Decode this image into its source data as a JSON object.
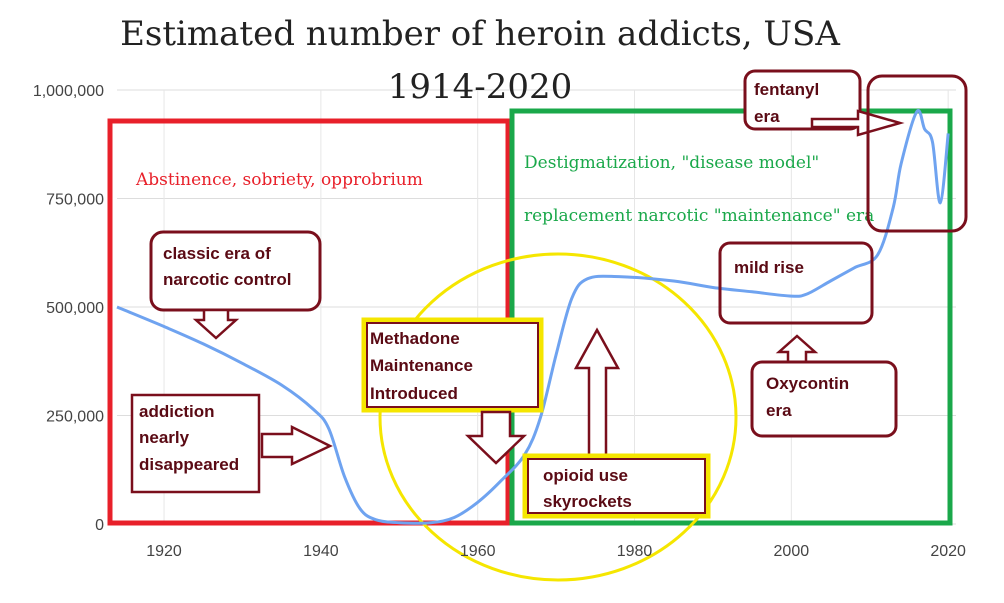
{
  "chart_data": {
    "type": "line",
    "title": "Estimated number of heroin addicts, USA",
    "subtitle": "1914-2020",
    "xlabel": "",
    "ylabel": "",
    "xlim": [
      1914,
      2021
    ],
    "ylim": [
      0,
      1000000
    ],
    "x_ticks": [
      "1920",
      "1940",
      "1960",
      "1980",
      "2000",
      "2020"
    ],
    "y_ticks": [
      "0",
      "250,000",
      "500,000",
      "750,000",
      "1,000,000"
    ],
    "grid": true,
    "series": [
      {
        "color": "#6fa3f0",
        "points": [
          [
            1914,
            500000
          ],
          [
            1920,
            455000
          ],
          [
            1925,
            415000
          ],
          [
            1930,
            370000
          ],
          [
            1935,
            320000
          ],
          [
            1939,
            265000
          ],
          [
            1941,
            220000
          ],
          [
            1943,
            110000
          ],
          [
            1945,
            35000
          ],
          [
            1947,
            10000
          ],
          [
            1950,
            3000
          ],
          [
            1954,
            3000
          ],
          [
            1957,
            15000
          ],
          [
            1960,
            50000
          ],
          [
            1963,
            100000
          ],
          [
            1966,
            160000
          ],
          [
            1968,
            245000
          ],
          [
            1970,
            390000
          ],
          [
            1972,
            520000
          ],
          [
            1974,
            565000
          ],
          [
            1978,
            570000
          ],
          [
            1985,
            560000
          ],
          [
            1990,
            545000
          ],
          [
            1995,
            535000
          ],
          [
            2000,
            525000
          ],
          [
            2002,
            530000
          ],
          [
            2005,
            560000
          ],
          [
            2008,
            590000
          ],
          [
            2011,
            620000
          ],
          [
            2013,
            730000
          ],
          [
            2014,
            830000
          ],
          [
            2016,
            950000
          ],
          [
            2017,
            910000
          ],
          [
            2018,
            880000
          ],
          [
            2019,
            740000
          ],
          [
            2020,
            900000
          ]
        ]
      }
    ],
    "annotations": {
      "era1": "Abstinence, sobriety, opprobrium",
      "era2_line1": "Destigmatization, \"disease model\"",
      "era2_line2": "replacement narcotic \"maintenance\" era",
      "classic_line1": "classic era of",
      "classic_line2": "narcotic control",
      "disappeared_line1": "addiction",
      "disappeared_line2": "nearly",
      "disappeared_line3": "disappeared",
      "methadone_line1": "Methadone",
      "methadone_line2": "Maintenance",
      "methadone_line3": "Introduced",
      "skyrockets_line1": "opioid use",
      "skyrockets_line2": "skyrockets",
      "mildrise": "mild rise",
      "oxycontin_line1": "Oxycontin",
      "oxycontin_line2": "era",
      "fentanyl_line1": "fentanyl",
      "fentanyl_line2": "era"
    },
    "colors": {
      "line": "#6fa3f0",
      "era1_box": "#e8202a",
      "era2_box": "#1aa84a",
      "highlight_circle": "#f5e600",
      "callout": "#7a0f1c"
    }
  }
}
